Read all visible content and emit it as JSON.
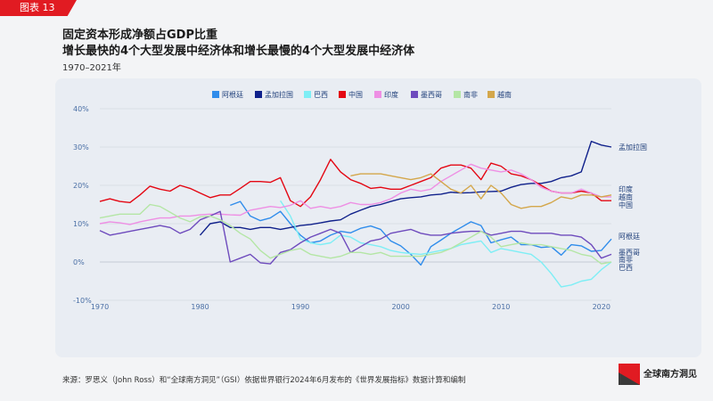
{
  "figure_tag": "图表 13",
  "title_line1": "固定资本形成净额占GDP比重",
  "title_line2": "增长最快的4个大型发展中经济体和增长最慢的4个大型发展中经济体",
  "subtitle": "1970–2021年",
  "source": "来源：罗思义（John Ross）和“全球南方洞见”（GSI）依据世界银行2024年6月发布的《世界发展指标》数据计算和编制",
  "logo_text": "全球南方洞见",
  "chart_data": {
    "type": "line",
    "title": "",
    "xlabel": "",
    "ylabel": "",
    "xlim": [
      1970,
      2021
    ],
    "ylim": [
      -10,
      40
    ],
    "yticks": [
      -10,
      0,
      10,
      20,
      30,
      40
    ],
    "ytick_labels": [
      "-10%",
      "0%",
      "10%",
      "20%",
      "30%",
      "40%"
    ],
    "xticks": [
      1970,
      1980,
      1990,
      2000,
      2010,
      2020
    ],
    "xtick_labels": [
      "1970",
      "1980",
      "1990",
      "2000",
      "2010",
      "2020"
    ],
    "grid": "horizontal",
    "legend": "top",
    "series": [
      {
        "name": "阿根廷",
        "color": "#2f8ceb",
        "end_label": "阿根廷",
        "x": [
          1983,
          1984,
          1985,
          1986,
          1987,
          1988,
          1989,
          1990,
          1991,
          1992,
          1993,
          1994,
          1995,
          1996,
          1997,
          1998,
          1999,
          2000,
          2001,
          2002,
          2003,
          2004,
          2005,
          2006,
          2007,
          2008,
          2009,
          2010,
          2011,
          2012,
          2013,
          2014,
          2015,
          2016,
          2017,
          2018,
          2019,
          2020,
          2021
        ],
        "y": [
          14.8,
          15.8,
          12,
          10.8,
          11.5,
          13.2,
          10,
          7,
          5,
          5.5,
          7,
          8,
          7.6,
          8.8,
          9.4,
          8.5,
          5.5,
          4.2,
          2,
          -0.8,
          4,
          5.7,
          7.5,
          9,
          10.5,
          9.5,
          5,
          5.8,
          6.5,
          4.5,
          4.5,
          3.8,
          4,
          1.8,
          4.5,
          4.2,
          2.8,
          3,
          6
        ]
      },
      {
        "name": "孟加拉国",
        "color": "#10218b",
        "end_label": "孟加拉国",
        "x": [
          1980,
          1981,
          1982,
          1983,
          1984,
          1985,
          1986,
          1987,
          1988,
          1989,
          1990,
          1991,
          1992,
          1993,
          1994,
          1995,
          1996,
          1997,
          1998,
          1999,
          2000,
          2001,
          2002,
          2003,
          2004,
          2005,
          2006,
          2007,
          2008,
          2009,
          2010,
          2011,
          2012,
          2013,
          2014,
          2015,
          2016,
          2017,
          2018,
          2019,
          2020,
          2021
        ],
        "y": [
          7,
          10,
          10.5,
          9,
          9,
          8.5,
          9,
          9,
          8.5,
          9,
          9.5,
          9.8,
          10.2,
          10.7,
          11,
          12.5,
          13.5,
          14.5,
          15,
          15.8,
          16.5,
          16.8,
          17,
          17.5,
          17.7,
          18.2,
          18,
          18.1,
          18.3,
          18.4,
          18.5,
          19.5,
          20.2,
          20.5,
          20.5,
          21,
          22,
          22.5,
          23.5,
          31.5,
          30.5,
          30
        ]
      },
      {
        "name": "巴西",
        "color": "#7eeef5",
        "end_label": "巴西",
        "x": [
          1988,
          1989,
          1990,
          1991,
          1992,
          1993,
          1994,
          1995,
          1996,
          1997,
          1998,
          1999,
          2000,
          2001,
          2002,
          2003,
          2004,
          2005,
          2006,
          2007,
          2008,
          2009,
          2010,
          2011,
          2012,
          2013,
          2014,
          2015,
          2016,
          2017,
          2018,
          2019,
          2020,
          2021
        ],
        "y": [
          16,
          12,
          6,
          5,
          4.5,
          5,
          7,
          6.5,
          5,
          4.5,
          4,
          3,
          2.5,
          2.2,
          2,
          2.5,
          3,
          3.5,
          4.5,
          5,
          5.5,
          2.5,
          3.5,
          3,
          2.5,
          2,
          0,
          -3,
          -6.5,
          -6,
          -5,
          -4.5,
          -2,
          0
        ]
      },
      {
        "name": "中国",
        "color": "#e40713",
        "end_label": "中国",
        "x": [
          1970,
          1971,
          1972,
          1973,
          1974,
          1975,
          1976,
          1977,
          1978,
          1979,
          1980,
          1981,
          1982,
          1983,
          1984,
          1985,
          1986,
          1987,
          1988,
          1989,
          1990,
          1991,
          1992,
          1993,
          1994,
          1995,
          1996,
          1997,
          1998,
          1999,
          2000,
          2001,
          2002,
          2003,
          2004,
          2005,
          2006,
          2007,
          2008,
          2009,
          2010,
          2011,
          2012,
          2013,
          2014,
          2015,
          2016,
          2017,
          2018,
          2019,
          2020,
          2021
        ],
        "y": [
          15.8,
          16.5,
          15.8,
          15.5,
          17.5,
          19.8,
          19,
          18.5,
          20,
          19.2,
          18,
          16.8,
          17.5,
          17.5,
          19.2,
          21,
          21,
          20.8,
          22,
          16,
          14.5,
          17,
          21.5,
          26.8,
          23.5,
          21.5,
          20.5,
          19.2,
          19.5,
          19,
          19,
          20,
          21,
          22,
          24.5,
          25.3,
          25.3,
          24.5,
          21.5,
          25.8,
          25,
          23,
          22.5,
          21.5,
          20,
          18.5,
          18,
          18,
          18.5,
          18,
          16,
          16
        ]
      },
      {
        "name": "印度",
        "color": "#ee8fe4",
        "end_label": "印度",
        "x": [
          1970,
          1971,
          1972,
          1973,
          1974,
          1975,
          1976,
          1977,
          1978,
          1979,
          1980,
          1981,
          1982,
          1983,
          1984,
          1985,
          1986,
          1987,
          1988,
          1989,
          1990,
          1991,
          1992,
          1993,
          1994,
          1995,
          1996,
          1997,
          1998,
          1999,
          2000,
          2001,
          2002,
          2003,
          2004,
          2005,
          2006,
          2007,
          2008,
          2009,
          2010,
          2011,
          2012,
          2013,
          2014,
          2015,
          2016,
          2017,
          2018,
          2019,
          2020,
          2021
        ],
        "y": [
          10,
          10.5,
          10.2,
          9.8,
          10.5,
          11,
          11.5,
          11.5,
          12,
          12,
          12.3,
          12.5,
          12.5,
          12.3,
          12.2,
          13.5,
          14,
          14.5,
          14.2,
          14.8,
          16,
          14,
          14.5,
          14,
          14.5,
          15.5,
          15,
          15,
          15.5,
          16.5,
          18,
          19,
          18.5,
          19,
          21,
          22.5,
          24,
          25.5,
          24.5,
          24,
          23.5,
          24,
          23,
          21.5,
          19.5,
          18.5,
          18,
          18,
          19,
          18,
          17,
          17
        ]
      },
      {
        "name": "墨西哥",
        "color": "#6e4bbd",
        "end_label": "墨西哥",
        "x": [
          1970,
          1971,
          1972,
          1973,
          1974,
          1975,
          1976,
          1977,
          1978,
          1979,
          1980,
          1981,
          1982,
          1983,
          1984,
          1985,
          1986,
          1987,
          1988,
          1989,
          1990,
          1991,
          1992,
          1993,
          1994,
          1995,
          1996,
          1997,
          1998,
          1999,
          2000,
          2001,
          2002,
          2003,
          2004,
          2005,
          2006,
          2007,
          2008,
          2009,
          2010,
          2011,
          2012,
          2013,
          2014,
          2015,
          2016,
          2017,
          2018,
          2019,
          2020,
          2021
        ],
        "y": [
          8.2,
          7,
          7.5,
          8,
          8.5,
          9,
          9.5,
          9,
          7.5,
          8.5,
          11,
          12,
          13.2,
          0,
          1,
          2,
          -0.2,
          -0.5,
          2.5,
          3.2,
          5,
          6.5,
          7.5,
          8.5,
          7.5,
          2.5,
          4,
          5.5,
          6,
          7.5,
          8,
          8.5,
          7.5,
          7,
          7,
          7.5,
          7.8,
          8,
          8,
          7,
          7.5,
          8,
          8,
          7.5,
          7.5,
          7.5,
          7,
          7,
          6.5,
          4.5,
          1,
          2
        ]
      },
      {
        "name": "南非",
        "color": "#b4e6a5",
        "end_label": "南非",
        "x": [
          1970,
          1971,
          1972,
          1973,
          1974,
          1975,
          1976,
          1977,
          1978,
          1979,
          1980,
          1981,
          1982,
          1983,
          1984,
          1985,
          1986,
          1987,
          1988,
          1989,
          1990,
          1991,
          1992,
          1993,
          1994,
          1995,
          1996,
          1997,
          1998,
          1999,
          2000,
          2001,
          2002,
          2003,
          2004,
          2005,
          2006,
          2007,
          2008,
          2009,
          2010,
          2011,
          2012,
          2013,
          2014,
          2015,
          2016,
          2017,
          2018,
          2019,
          2020,
          2021
        ],
        "y": [
          11.5,
          12,
          12.5,
          12.5,
          12.5,
          15,
          14.5,
          13,
          11.5,
          10.5,
          11.8,
          12,
          11,
          9.5,
          7.5,
          6,
          3,
          1,
          2,
          3,
          3.5,
          2,
          1.5,
          1,
          1.5,
          2.5,
          2.5,
          2,
          2.5,
          1.5,
          1.5,
          1.5,
          1.5,
          2,
          2.5,
          3.5,
          5,
          6.5,
          8,
          6.5,
          4,
          4.5,
          5,
          4.5,
          4.5,
          4,
          3.5,
          3,
          2,
          1.5,
          -0.5,
          0
        ]
      },
      {
        "name": "越南",
        "color": "#d4a74b",
        "end_label": "越南",
        "x": [
          1995,
          1996,
          1997,
          1998,
          1999,
          2000,
          2001,
          2002,
          2003,
          2004,
          2005,
          2006,
          2007,
          2008,
          2009,
          2010,
          2011,
          2012,
          2013,
          2014,
          2015,
          2016,
          2017,
          2018,
          2019,
          2020,
          2021
        ],
        "y": [
          22.5,
          23,
          23,
          23,
          22.5,
          22,
          21.5,
          22,
          23,
          21,
          19,
          18,
          20,
          16.5,
          20,
          18,
          15,
          14,
          14.5,
          14.5,
          15.5,
          17,
          16.5,
          17.5,
          17.5,
          17,
          17.5
        ]
      }
    ]
  }
}
